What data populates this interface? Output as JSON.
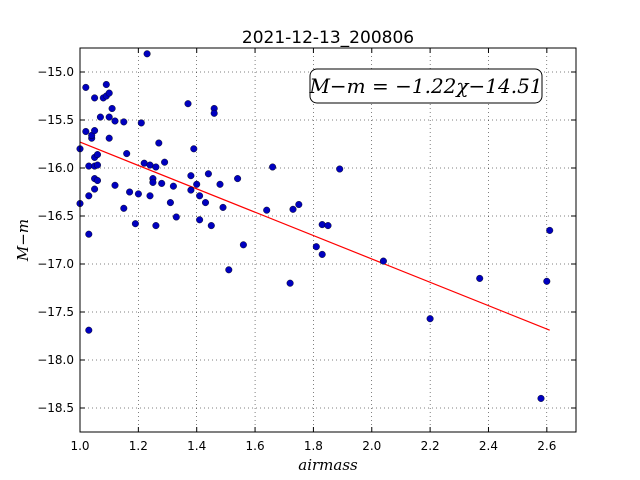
{
  "chart_data": {
    "type": "scatter",
    "title": "2021-12-13_200806",
    "xlabel": "airmass",
    "ylabel": "M−m",
    "xlim": [
      1.0,
      2.7
    ],
    "ylim": [
      -18.75,
      -14.75
    ],
    "x_inverted": false,
    "y_inverted": false,
    "xticks": [
      "1.0",
      "1.2",
      "1.4",
      "1.6",
      "1.8",
      "2.0",
      "2.2",
      "2.4",
      "2.6"
    ],
    "yticks": [
      "−15.0",
      "−15.5",
      "−16.0",
      "−16.5",
      "−17.0",
      "−17.5",
      "−18.0",
      "−18.5"
    ],
    "grid": true,
    "annotation": "M−m = −1.22χ−14.51",
    "series": [
      {
        "type": "scatter",
        "color": "#0000bf",
        "x": [
          1.0,
          1.0,
          1.02,
          1.02,
          1.03,
          1.03,
          1.03,
          1.03,
          1.04,
          1.04,
          1.05,
          1.05,
          1.05,
          1.05,
          1.05,
          1.05,
          1.06,
          1.06,
          1.06,
          1.07,
          1.08,
          1.09,
          1.09,
          1.1,
          1.1,
          1.1,
          1.11,
          1.12,
          1.12,
          1.15,
          1.15,
          1.16,
          1.17,
          1.19,
          1.2,
          1.21,
          1.22,
          1.23,
          1.24,
          1.24,
          1.25,
          1.25,
          1.26,
          1.26,
          1.27,
          1.28,
          1.29,
          1.31,
          1.32,
          1.33,
          1.37,
          1.38,
          1.38,
          1.39,
          1.4,
          1.41,
          1.41,
          1.43,
          1.44,
          1.45,
          1.46,
          1.46,
          1.48,
          1.49,
          1.51,
          1.54,
          1.56,
          1.64,
          1.66,
          1.72,
          1.73,
          1.75,
          1.81,
          1.83,
          1.83,
          1.85,
          1.89,
          2.04,
          2.2,
          2.37,
          2.58,
          2.6,
          2.61
        ],
        "y": [
          -15.8,
          -16.37,
          -15.62,
          -15.16,
          -15.98,
          -16.29,
          -16.69,
          -17.69,
          -15.69,
          -15.66,
          -15.27,
          -15.61,
          -15.98,
          -16.11,
          -16.22,
          -15.89,
          -15.86,
          -16.13,
          -15.97,
          -15.47,
          -15.27,
          -15.13,
          -15.25,
          -15.22,
          -15.47,
          -15.69,
          -15.38,
          -16.18,
          -15.51,
          -16.42,
          -15.52,
          -15.85,
          -16.25,
          -16.58,
          -16.27,
          -15.53,
          -15.95,
          -14.81,
          -15.97,
          -16.29,
          -16.11,
          -16.15,
          -15.99,
          -16.6,
          -15.74,
          -16.16,
          -15.94,
          -16.36,
          -16.19,
          -16.51,
          -15.33,
          -16.08,
          -16.23,
          -15.8,
          -16.17,
          -16.29,
          -16.54,
          -16.36,
          -16.06,
          -16.6,
          -15.38,
          -15.43,
          -16.17,
          -16.41,
          -17.06,
          -16.11,
          -16.8,
          -16.44,
          -15.99,
          -17.2,
          -16.43,
          -16.38,
          -16.82,
          -16.9,
          -16.59,
          -16.6,
          -16.01,
          -16.97,
          -17.57,
          -17.15,
          -18.4,
          -17.18,
          -16.65
        ]
      },
      {
        "type": "line",
        "color": "#ff0000",
        "x": [
          1.0,
          2.61
        ],
        "y": [
          -15.73,
          -17.69
        ]
      }
    ]
  }
}
